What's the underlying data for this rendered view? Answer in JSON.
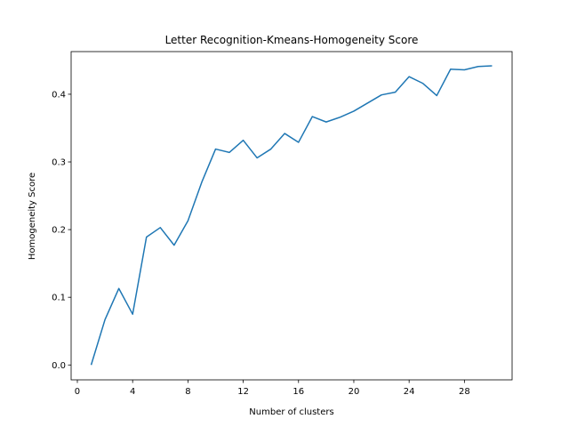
{
  "chart_data": {
    "type": "line",
    "title": "Letter Recognition-Kmeans-Homogeneity Score",
    "xlabel": "Number of clusters",
    "ylabel": "Homogeneity Score",
    "xlim": [
      -0.45,
      31.45
    ],
    "ylim": [
      -0.022,
      0.463
    ],
    "xticks": [
      0,
      4,
      8,
      12,
      16,
      20,
      24,
      28
    ],
    "yticks": [
      0.0,
      0.1,
      0.2,
      0.3,
      0.4
    ],
    "ytick_labels": [
      "0.0",
      "0.1",
      "0.2",
      "0.3",
      "0.4"
    ],
    "grid": false,
    "series": [
      {
        "color": "#1f77b4",
        "x": [
          1,
          2,
          3,
          4,
          5,
          6,
          7,
          8,
          9,
          10,
          11,
          12,
          13,
          14,
          15,
          16,
          17,
          18,
          19,
          20,
          21,
          22,
          23,
          24,
          25,
          26,
          27,
          28,
          29,
          30
        ],
        "y": [
          0.0,
          0.067,
          0.113,
          0.075,
          0.189,
          0.203,
          0.177,
          0.213,
          0.27,
          0.319,
          0.314,
          0.332,
          0.306,
          0.319,
          0.342,
          0.329,
          0.367,
          0.359,
          0.366,
          0.375,
          0.387,
          0.399,
          0.403,
          0.426,
          0.416,
          0.398,
          0.437,
          0.436,
          0.441,
          0.442
        ]
      }
    ]
  }
}
